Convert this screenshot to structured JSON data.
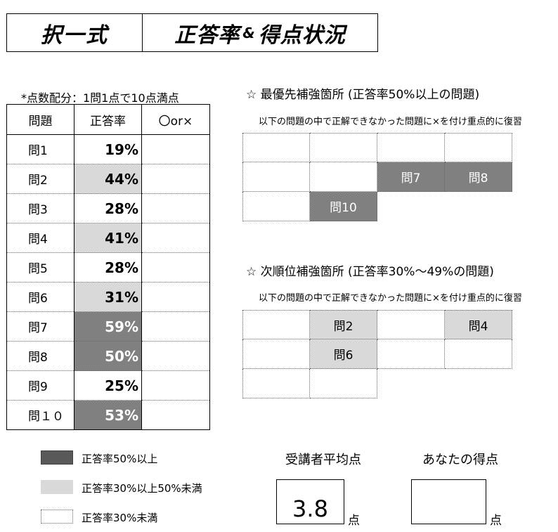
{
  "title": {
    "left": "択一式",
    "right_main": "正答率",
    "right_amp": "&",
    "right_tail": "得点状況"
  },
  "note": "*点数配分：1問1点で10点満点",
  "table": {
    "headers": [
      "問題",
      "正答率",
      "〇or×"
    ],
    "rows": [
      {
        "q": "問1",
        "rate": "19%",
        "level": "low"
      },
      {
        "q": "問2",
        "rate": "44%",
        "level": "mid"
      },
      {
        "q": "問3",
        "rate": "28%",
        "level": "low"
      },
      {
        "q": "問4",
        "rate": "41%",
        "level": "mid"
      },
      {
        "q": "問5",
        "rate": "28%",
        "level": "low"
      },
      {
        "q": "問6",
        "rate": "31%",
        "level": "mid"
      },
      {
        "q": "問7",
        "rate": "59%",
        "level": "high"
      },
      {
        "q": "問8",
        "rate": "50%",
        "level": "high"
      },
      {
        "q": "問9",
        "rate": "25%",
        "level": "low"
      },
      {
        "q": "問１０",
        "rate": "53%",
        "level": "high"
      }
    ]
  },
  "priority": {
    "title": "☆ 最優先補強箇所 (正答率50%以上の問題)",
    "instruction": "以下の問題の中で正解できなかった問題に×を付け重点的に復習",
    "cells": [
      "",
      "",
      "",
      "",
      "",
      "",
      "問7",
      "問8",
      "",
      "問10",
      "",
      ""
    ],
    "styles": [
      "",
      "",
      "",
      "",
      "",
      "",
      "dark",
      "dark",
      "",
      "dark",
      "",
      ""
    ]
  },
  "secondary": {
    "title": "☆ 次順位補強箇所 (正答率30%～49%の問題)",
    "instruction": "以下の問題の中で正解できなかった問題に×を付け重点的に復習",
    "cells": [
      "",
      "問2",
      "",
      "問4",
      "",
      "問6",
      "",
      "",
      "",
      "",
      "",
      ""
    ],
    "styles": [
      "",
      "light",
      "",
      "light",
      "",
      "light",
      "",
      "",
      "",
      "",
      "",
      ""
    ]
  },
  "legend": [
    {
      "label": "正答率50%以上",
      "color": "#595959"
    },
    {
      "label": "正答率30%以上50%未満",
      "color": "#d9d9d9"
    },
    {
      "label": "正答率30%未満",
      "color": "#ffffff"
    }
  ],
  "scores": {
    "average_label": "受講者平均点",
    "average_value": "3.8",
    "your_label": "あなたの得点",
    "your_value": "",
    "unit": "点"
  }
}
